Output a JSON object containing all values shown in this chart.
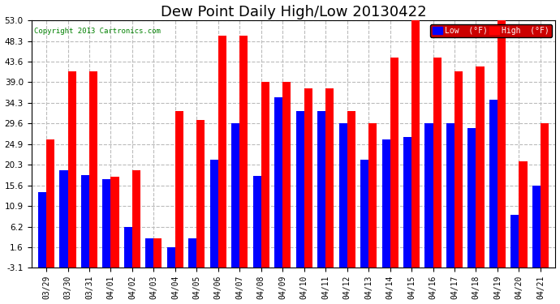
{
  "title": "Dew Point Daily High/Low 20130422",
  "copyright": "Copyright 2013 Cartronics.com",
  "dates": [
    "03/29",
    "03/30",
    "03/31",
    "04/01",
    "04/02",
    "04/03",
    "04/04",
    "04/05",
    "04/06",
    "04/07",
    "04/08",
    "04/09",
    "04/10",
    "04/11",
    "04/12",
    "04/13",
    "04/14",
    "04/15",
    "04/16",
    "04/17",
    "04/18",
    "04/19",
    "04/20",
    "04/21"
  ],
  "low_values": [
    14.0,
    19.0,
    18.0,
    17.0,
    6.2,
    3.5,
    1.6,
    3.5,
    21.5,
    29.6,
    17.8,
    35.6,
    32.5,
    32.5,
    29.6,
    21.5,
    26.0,
    26.5,
    29.6,
    29.6,
    28.5,
    35.0,
    9.0,
    15.6
  ],
  "high_values": [
    26.0,
    41.5,
    41.5,
    17.5,
    19.0,
    3.5,
    32.5,
    30.5,
    49.5,
    49.5,
    39.0,
    39.0,
    37.5,
    37.5,
    32.5,
    29.6,
    44.5,
    53.0,
    44.5,
    41.5,
    42.5,
    53.0,
    21.0,
    29.6
  ],
  "bar_width": 0.38,
  "low_color": "#0000ff",
  "high_color": "#ff0000",
  "bg_color": "#ffffff",
  "grid_color": "#bbbbbb",
  "yticks": [
    -3.1,
    1.6,
    6.2,
    10.9,
    15.6,
    20.3,
    24.9,
    29.6,
    34.3,
    39.0,
    43.6,
    48.3,
    53.0
  ],
  "ymin": -3.1,
  "ymax": 53.0,
  "bar_bottom": -3.1,
  "title_fontsize": 13,
  "legend_low_label": "Low  (°F)",
  "legend_high_label": "High  (°F)"
}
